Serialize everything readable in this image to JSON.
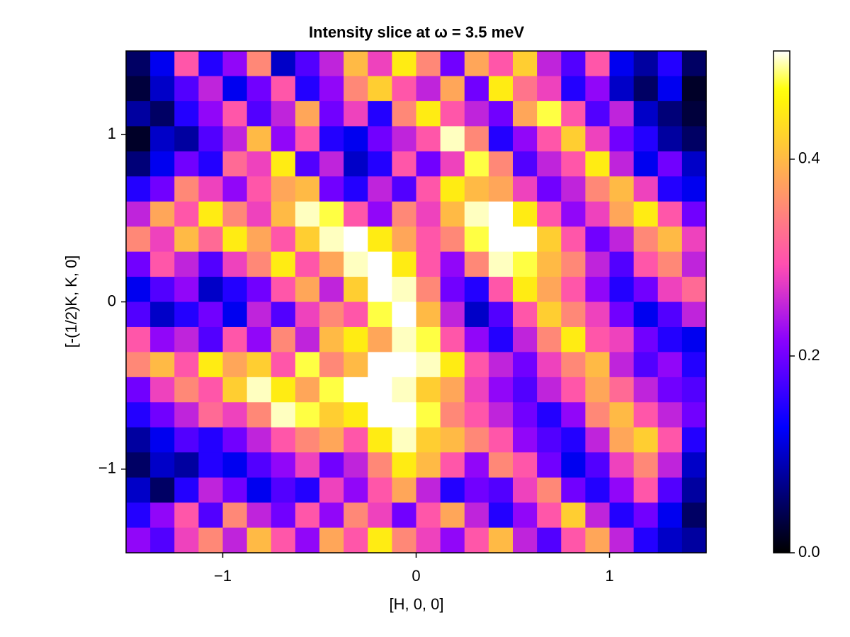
{
  "chart_data": {
    "type": "heatmap",
    "title": "Intensity slice at ω = 3.5 meV",
    "x_label": "[H, 0, 0]",
    "y_label": "[-(1/2)K, K, 0]",
    "xlim": [
      -1.5,
      1.5
    ],
    "ylim": [
      -1.5,
      1.5
    ],
    "xticks": [
      {
        "value": -1,
        "label": "−1"
      },
      0,
      1
    ],
    "yticks": [
      {
        "value": -1,
        "label": "−1"
      },
      0,
      1
    ],
    "colormap": "gnuplot2",
    "clim": [
      0,
      0.51
    ],
    "colorbar_ticks": [
      {
        "value": 0,
        "label": "0.0"
      },
      0.2,
      0.4
    ],
    "z": [
      [
        0.05,
        0.12,
        0.3,
        0.15,
        0.22,
        0.35,
        0.1,
        0.18,
        0.25,
        0.4,
        0.28,
        0.45,
        0.35,
        0.2,
        0.38,
        0.3,
        0.42,
        0.25,
        0.18,
        0.3,
        0.12,
        0.08,
        0.15,
        0.05
      ],
      [
        0.03,
        0.1,
        0.18,
        0.25,
        0.12,
        0.2,
        0.3,
        0.15,
        0.22,
        0.35,
        0.42,
        0.3,
        0.25,
        0.38,
        0.2,
        0.45,
        0.33,
        0.28,
        0.15,
        0.22,
        0.1,
        0.05,
        0.12,
        0.02
      ],
      [
        0.08,
        0.05,
        0.15,
        0.22,
        0.3,
        0.18,
        0.25,
        0.38,
        0.2,
        0.28,
        0.15,
        0.35,
        0.45,
        0.3,
        0.25,
        0.2,
        0.38,
        0.48,
        0.3,
        0.18,
        0.25,
        0.1,
        0.06,
        0.03
      ],
      [
        0.02,
        0.1,
        0.08,
        0.18,
        0.25,
        0.4,
        0.22,
        0.3,
        0.15,
        0.12,
        0.2,
        0.25,
        0.3,
        0.5,
        0.35,
        0.15,
        0.22,
        0.3,
        0.42,
        0.28,
        0.2,
        0.15,
        0.08,
        0.05
      ],
      [
        0.06,
        0.12,
        0.2,
        0.15,
        0.32,
        0.28,
        0.45,
        0.18,
        0.25,
        0.1,
        0.15,
        0.3,
        0.2,
        0.28,
        0.48,
        0.35,
        0.18,
        0.25,
        0.3,
        0.45,
        0.25,
        0.12,
        0.2,
        0.1
      ],
      [
        0.15,
        0.2,
        0.35,
        0.28,
        0.22,
        0.3,
        0.38,
        0.4,
        0.2,
        0.15,
        0.25,
        0.18,
        0.3,
        0.45,
        0.4,
        0.38,
        0.28,
        0.2,
        0.25,
        0.35,
        0.4,
        0.28,
        0.15,
        0.12
      ],
      [
        0.25,
        0.38,
        0.3,
        0.45,
        0.35,
        0.28,
        0.4,
        0.5,
        0.48,
        0.3,
        0.22,
        0.35,
        0.28,
        0.4,
        0.5,
        0.52,
        0.45,
        0.3,
        0.22,
        0.28,
        0.38,
        0.45,
        0.3,
        0.2
      ],
      [
        0.35,
        0.28,
        0.4,
        0.32,
        0.45,
        0.38,
        0.3,
        0.42,
        0.5,
        0.55,
        0.45,
        0.38,
        0.3,
        0.35,
        0.48,
        0.52,
        0.55,
        0.42,
        0.3,
        0.2,
        0.25,
        0.35,
        0.4,
        0.28
      ],
      [
        0.2,
        0.3,
        0.25,
        0.18,
        0.28,
        0.35,
        0.45,
        0.3,
        0.38,
        0.5,
        0.52,
        0.45,
        0.3,
        0.22,
        0.35,
        0.5,
        0.48,
        0.4,
        0.35,
        0.25,
        0.18,
        0.3,
        0.35,
        0.25
      ],
      [
        0.12,
        0.18,
        0.22,
        0.1,
        0.15,
        0.2,
        0.3,
        0.38,
        0.25,
        0.42,
        0.55,
        0.5,
        0.35,
        0.2,
        0.15,
        0.3,
        0.45,
        0.38,
        0.3,
        0.22,
        0.15,
        0.2,
        0.28,
        0.32
      ],
      [
        0.18,
        0.1,
        0.15,
        0.2,
        0.12,
        0.25,
        0.18,
        0.28,
        0.35,
        0.3,
        0.48,
        0.52,
        0.4,
        0.25,
        0.1,
        0.18,
        0.3,
        0.42,
        0.35,
        0.28,
        0.2,
        0.12,
        0.18,
        0.25
      ],
      [
        0.3,
        0.22,
        0.25,
        0.18,
        0.3,
        0.22,
        0.35,
        0.25,
        0.4,
        0.45,
        0.38,
        0.5,
        0.48,
        0.3,
        0.22,
        0.15,
        0.25,
        0.35,
        0.45,
        0.3,
        0.28,
        0.2,
        0.15,
        0.12
      ],
      [
        0.35,
        0.4,
        0.3,
        0.45,
        0.38,
        0.42,
        0.3,
        0.48,
        0.35,
        0.4,
        0.52,
        0.55,
        0.5,
        0.45,
        0.3,
        0.25,
        0.2,
        0.28,
        0.35,
        0.4,
        0.25,
        0.18,
        0.22,
        0.15
      ],
      [
        0.2,
        0.28,
        0.35,
        0.3,
        0.42,
        0.5,
        0.45,
        0.38,
        0.48,
        0.55,
        0.52,
        0.5,
        0.42,
        0.38,
        0.28,
        0.22,
        0.18,
        0.25,
        0.3,
        0.38,
        0.32,
        0.25,
        0.2,
        0.18
      ],
      [
        0.15,
        0.2,
        0.25,
        0.32,
        0.28,
        0.35,
        0.5,
        0.48,
        0.42,
        0.45,
        0.55,
        0.52,
        0.48,
        0.35,
        0.3,
        0.25,
        0.2,
        0.15,
        0.22,
        0.35,
        0.4,
        0.3,
        0.25,
        0.2
      ],
      [
        0.08,
        0.12,
        0.18,
        0.15,
        0.2,
        0.25,
        0.3,
        0.35,
        0.38,
        0.3,
        0.45,
        0.5,
        0.42,
        0.4,
        0.35,
        0.3,
        0.22,
        0.18,
        0.15,
        0.25,
        0.38,
        0.42,
        0.3,
        0.15
      ],
      [
        0.05,
        0.1,
        0.08,
        0.15,
        0.12,
        0.18,
        0.22,
        0.28,
        0.2,
        0.25,
        0.35,
        0.45,
        0.4,
        0.3,
        0.22,
        0.35,
        0.3,
        0.2,
        0.12,
        0.18,
        0.28,
        0.35,
        0.25,
        0.1
      ],
      [
        0.1,
        0.05,
        0.15,
        0.25,
        0.2,
        0.12,
        0.18,
        0.15,
        0.28,
        0.22,
        0.3,
        0.38,
        0.25,
        0.15,
        0.2,
        0.18,
        0.28,
        0.35,
        0.2,
        0.15,
        0.22,
        0.3,
        0.18,
        0.08
      ],
      [
        0.15,
        0.22,
        0.3,
        0.18,
        0.35,
        0.25,
        0.2,
        0.3,
        0.22,
        0.35,
        0.28,
        0.2,
        0.3,
        0.38,
        0.25,
        0.15,
        0.22,
        0.3,
        0.42,
        0.25,
        0.15,
        0.2,
        0.12,
        0.05
      ],
      [
        0.22,
        0.18,
        0.28,
        0.35,
        0.25,
        0.4,
        0.3,
        0.22,
        0.38,
        0.3,
        0.45,
        0.35,
        0.28,
        0.22,
        0.3,
        0.4,
        0.25,
        0.18,
        0.3,
        0.38,
        0.25,
        0.15,
        0.1,
        0.08
      ]
    ]
  }
}
